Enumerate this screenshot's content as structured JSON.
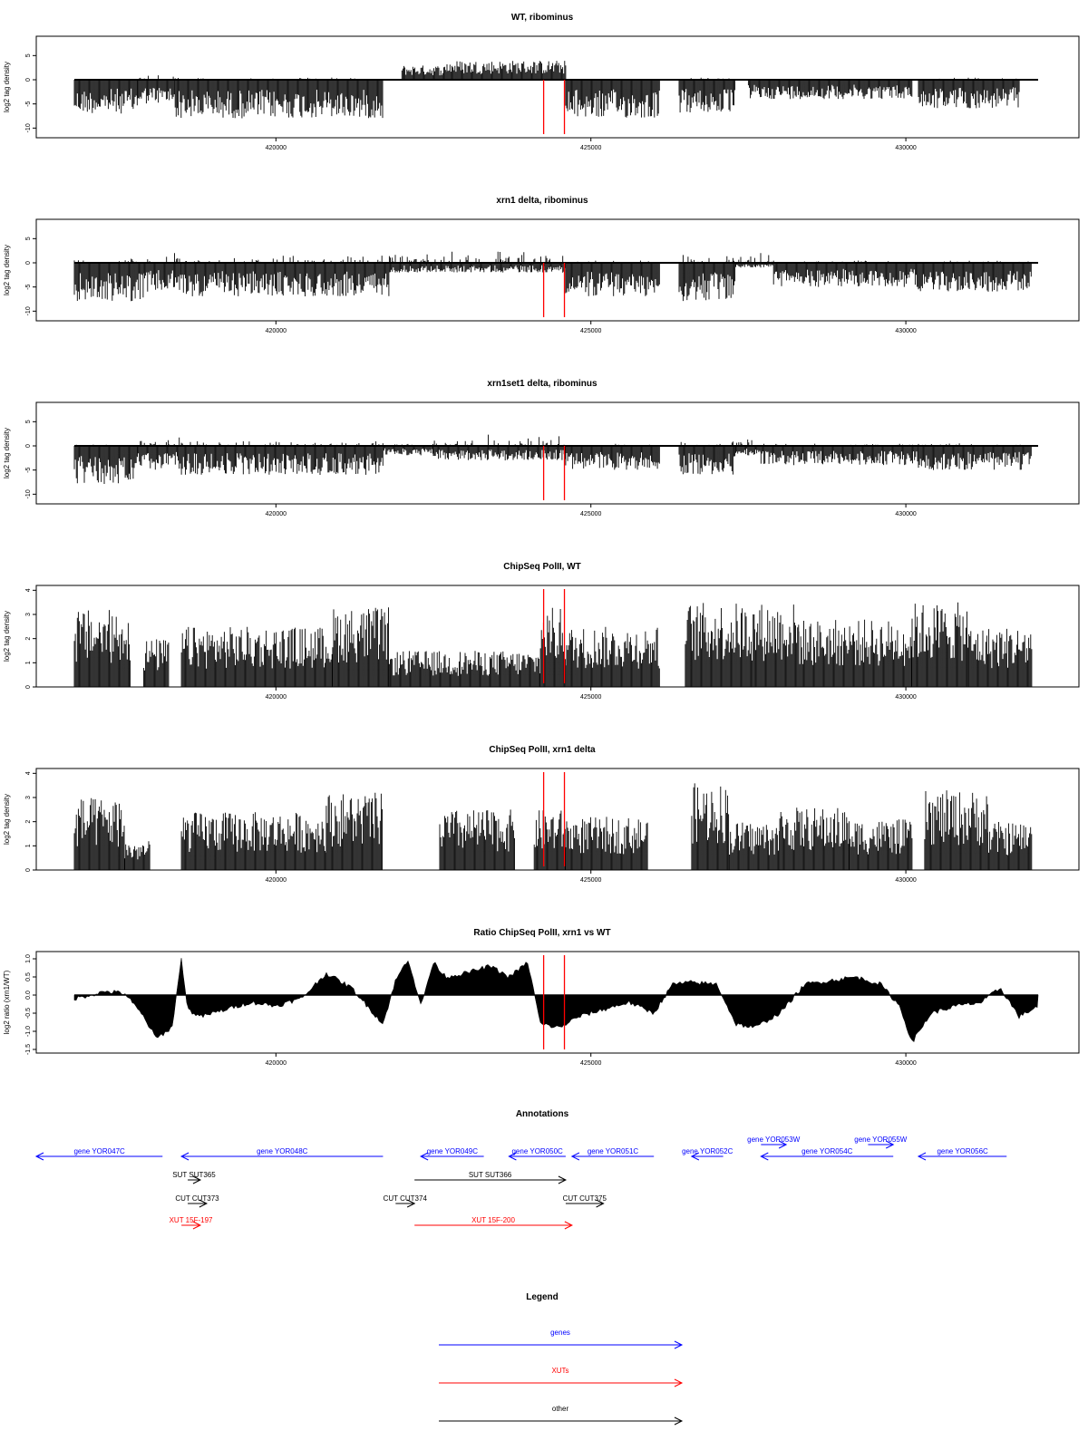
{
  "chart_data": {
    "type": "genome-track-figure",
    "x_ticks": [
      "420000",
      "425000",
      "430000"
    ],
    "x_tick_values": [
      420000,
      425000,
      430000
    ],
    "x_range": [
      416800,
      432100
    ],
    "highlight_lines": [
      424250,
      424580
    ],
    "highlight_color": "#ff0000",
    "panels": [
      {
        "title": "WT, ribominus",
        "ylabel": "log2 tag density",
        "style": "signed-bars",
        "ylim": [
          -12,
          9
        ],
        "yticks": [
          "-10",
          "-5",
          "0",
          "5"
        ],
        "ytick_values": [
          -10,
          -5,
          0,
          5
        ],
        "segments": [
          [
            416800,
            417800,
            -7,
            0
          ],
          [
            417800,
            418400,
            -5,
            2
          ],
          [
            418400,
            421700,
            -8,
            1
          ],
          [
            422000,
            422700,
            0,
            3
          ],
          [
            422700,
            424600,
            0,
            4
          ],
          [
            424600,
            426100,
            -8,
            0
          ],
          [
            426400,
            427300,
            -7,
            1
          ],
          [
            427500,
            430100,
            -4,
            0
          ],
          [
            430200,
            431800,
            -6,
            1
          ]
        ]
      },
      {
        "title": "xrn1 delta, ribominus",
        "ylabel": "log2 tag density",
        "style": "signed-bars",
        "ylim": [
          -12,
          9
        ],
        "yticks": [
          "-10",
          "-5",
          "0",
          "5"
        ],
        "ytick_values": [
          -10,
          -5,
          0,
          5
        ],
        "segments": [
          [
            416800,
            417900,
            -8,
            2
          ],
          [
            417900,
            418500,
            -6,
            5
          ],
          [
            418500,
            421800,
            -7,
            3
          ],
          [
            421800,
            422400,
            -2,
            3
          ],
          [
            422400,
            424600,
            -2,
            6
          ],
          [
            424600,
            426100,
            -7,
            1
          ],
          [
            426400,
            427300,
            -8,
            3
          ],
          [
            427300,
            427900,
            -1,
            4
          ],
          [
            427900,
            430200,
            -5,
            1
          ],
          [
            430200,
            432000,
            -6,
            1
          ]
        ]
      },
      {
        "title": "xrn1set1 delta, ribominus",
        "ylabel": "log2 tag density",
        "style": "signed-bars",
        "ylim": [
          -12,
          9
        ],
        "yticks": [
          "-10",
          "-5",
          "0",
          "5"
        ],
        "ytick_values": [
          -10,
          -5,
          0,
          5
        ],
        "segments": [
          [
            416800,
            417800,
            -8,
            1
          ],
          [
            417800,
            418500,
            -5,
            4
          ],
          [
            418500,
            421700,
            -6,
            2
          ],
          [
            421700,
            422500,
            -2,
            1
          ],
          [
            422500,
            424600,
            -3,
            5
          ],
          [
            424600,
            426100,
            -5,
            1
          ],
          [
            426400,
            427300,
            -6,
            2
          ],
          [
            427300,
            427700,
            -2,
            4
          ],
          [
            427700,
            430200,
            -4,
            1
          ],
          [
            430200,
            432000,
            -5,
            1
          ]
        ]
      },
      {
        "title": "ChipSeq PolII, WT",
        "ylabel": "log2 tag density",
        "style": "positive-bars",
        "ylim": [
          0,
          4.2
        ],
        "yticks": [
          "0",
          "1",
          "2",
          "3",
          "4"
        ],
        "ytick_values": [
          0,
          1,
          2,
          3,
          4
        ],
        "segments": [
          [
            416800,
            417700,
            0,
            3.2
          ],
          [
            417900,
            418300,
            0,
            2
          ],
          [
            418500,
            420900,
            0,
            2.5
          ],
          [
            420900,
            421800,
            0,
            3.3
          ],
          [
            421800,
            424200,
            0,
            1.5
          ],
          [
            424200,
            424600,
            0,
            3.3
          ],
          [
            424600,
            426100,
            0,
            2.5
          ],
          [
            426500,
            427600,
            0,
            3.5
          ],
          [
            427600,
            428300,
            0,
            3.5
          ],
          [
            428300,
            430100,
            0,
            2.8
          ],
          [
            430100,
            431000,
            0,
            3.5
          ],
          [
            431000,
            432000,
            0,
            2.5
          ]
        ]
      },
      {
        "title": "ChipSeq PolII, xrn1 delta",
        "ylabel": "log2 tag density",
        "style": "positive-bars",
        "ylim": [
          0,
          4.2
        ],
        "yticks": [
          "0",
          "1",
          "2",
          "3",
          "4"
        ],
        "ytick_values": [
          0,
          1,
          2,
          3,
          4
        ],
        "segments": [
          [
            416800,
            417600,
            0,
            3
          ],
          [
            417600,
            418000,
            0,
            1.2
          ],
          [
            418500,
            420800,
            0,
            2.4
          ],
          [
            420800,
            421700,
            0,
            3.2
          ],
          [
            422600,
            423800,
            0,
            2.5
          ],
          [
            424100,
            424600,
            0,
            2.5
          ],
          [
            424600,
            425900,
            0,
            2.2
          ],
          [
            426600,
            427200,
            0,
            3.6
          ],
          [
            427200,
            428000,
            0,
            2
          ],
          [
            428000,
            429100,
            0,
            2.6
          ],
          [
            429100,
            430100,
            0,
            2.1
          ],
          [
            430300,
            431300,
            0,
            3.3
          ],
          [
            431300,
            432000,
            0,
            2
          ]
        ]
      },
      {
        "title": "Ratio ChipSeq PolII, xrn1 vs WT",
        "ylabel": "log2 ratio (xrn1/WT)",
        "style": "ratio-area",
        "ylim": [
          -1.6,
          1.2
        ],
        "yticks": [
          "-1.5",
          "-1.0",
          "-0.5",
          "0.0",
          "0.5",
          "1.0"
        ],
        "ytick_values": [
          -1.5,
          -1.0,
          -0.5,
          0.0,
          0.5,
          1.0
        ],
        "profile_x": [
          416800,
          417300,
          417600,
          417900,
          418100,
          418350,
          418500,
          418600,
          418800,
          419200,
          419600,
          420000,
          420400,
          420800,
          421200,
          421500,
          421700,
          421900,
          422100,
          422300,
          422500,
          422700,
          423000,
          423400,
          423700,
          424000,
          424200,
          424500,
          424800,
          425200,
          425600,
          426000,
          426300,
          426600,
          427000,
          427300,
          427600,
          428000,
          428400,
          428800,
          429200,
          429600,
          429900,
          430100,
          430400,
          430800,
          431200,
          431500,
          431800,
          432100
        ],
        "profile_y": [
          -0.1,
          0.1,
          0.05,
          -0.6,
          -1.2,
          -0.9,
          1.0,
          -0.4,
          -0.6,
          -0.4,
          -0.2,
          -0.3,
          -0.1,
          0.6,
          0.2,
          -0.4,
          -0.8,
          0.4,
          1.0,
          -0.3,
          0.9,
          0.5,
          0.6,
          0.8,
          0.5,
          0.9,
          -0.8,
          -0.9,
          -0.6,
          -0.4,
          -0.2,
          -0.5,
          0.3,
          0.35,
          0.3,
          -0.8,
          -0.9,
          -0.5,
          0.3,
          0.4,
          0.5,
          0.3,
          -0.3,
          -1.3,
          -0.5,
          -0.3,
          -0.2,
          0.2,
          -0.6,
          -0.3
        ]
      }
    ],
    "annotations_title": "Annotations",
    "features": [
      {
        "label": "gene YOR047C",
        "type": "gene",
        "strand": "-",
        "start": 416800,
        "end": 418200,
        "row": 0
      },
      {
        "label": "gene YOR048C",
        "type": "gene",
        "strand": "-",
        "start": 418500,
        "end": 421700,
        "row": 0
      },
      {
        "label": "gene YOR049C",
        "type": "gene",
        "strand": "-",
        "start": 422300,
        "end": 423300,
        "row": 0
      },
      {
        "label": "gene YOR050C",
        "type": "gene",
        "strand": "-",
        "start": 423700,
        "end": 424600,
        "row": 0
      },
      {
        "label": "gene YOR051C",
        "type": "gene",
        "strand": "-",
        "start": 424700,
        "end": 426000,
        "row": 0
      },
      {
        "label": "gene YOR052C",
        "type": "gene",
        "strand": "-",
        "start": 426600,
        "end": 427100,
        "row": 0
      },
      {
        "label": "gene YOR053W",
        "type": "gene",
        "strand": "+",
        "start": 427700,
        "end": 428100,
        "row": -1
      },
      {
        "label": "gene YOR054C",
        "type": "gene",
        "strand": "-",
        "start": 427700,
        "end": 429800,
        "row": 0
      },
      {
        "label": "gene YOR055W",
        "type": "gene",
        "strand": "+",
        "start": 429400,
        "end": 429800,
        "row": -1
      },
      {
        "label": "gene YOR056C",
        "type": "gene",
        "strand": "-",
        "start": 430200,
        "end": 431600,
        "row": 0
      },
      {
        "label": "SUT SUT365",
        "type": "other",
        "strand": "+",
        "start": 418600,
        "end": 418800,
        "row": 1
      },
      {
        "label": "SUT SUT366",
        "type": "other",
        "strand": "+",
        "start": 422200,
        "end": 424600,
        "row": 1
      },
      {
        "label": "CUT CUT373",
        "type": "other",
        "strand": "+",
        "start": 418600,
        "end": 418900,
        "row": 2
      },
      {
        "label": "CUT CUT374",
        "type": "other",
        "strand": "+",
        "start": 421900,
        "end": 422200,
        "row": 2
      },
      {
        "label": "CUT CUT375",
        "type": "other",
        "strand": "+",
        "start": 424600,
        "end": 425200,
        "row": 2
      },
      {
        "label": "XUT 15F-197",
        "type": "xut",
        "strand": "+",
        "start": 418500,
        "end": 418800,
        "row": 3
      },
      {
        "label": "XUT 15F-200",
        "type": "xut",
        "strand": "+",
        "start": 422200,
        "end": 424700,
        "row": 3
      }
    ],
    "legend_title": "Legend",
    "legend": [
      {
        "label": "genes",
        "color": "#0000ff"
      },
      {
        "label": "XUTs",
        "color": "#ff0000"
      },
      {
        "label": "other",
        "color": "#000000"
      }
    ],
    "colors": {
      "gene": "#0000ff",
      "xut": "#ff0000",
      "other": "#000000"
    }
  }
}
